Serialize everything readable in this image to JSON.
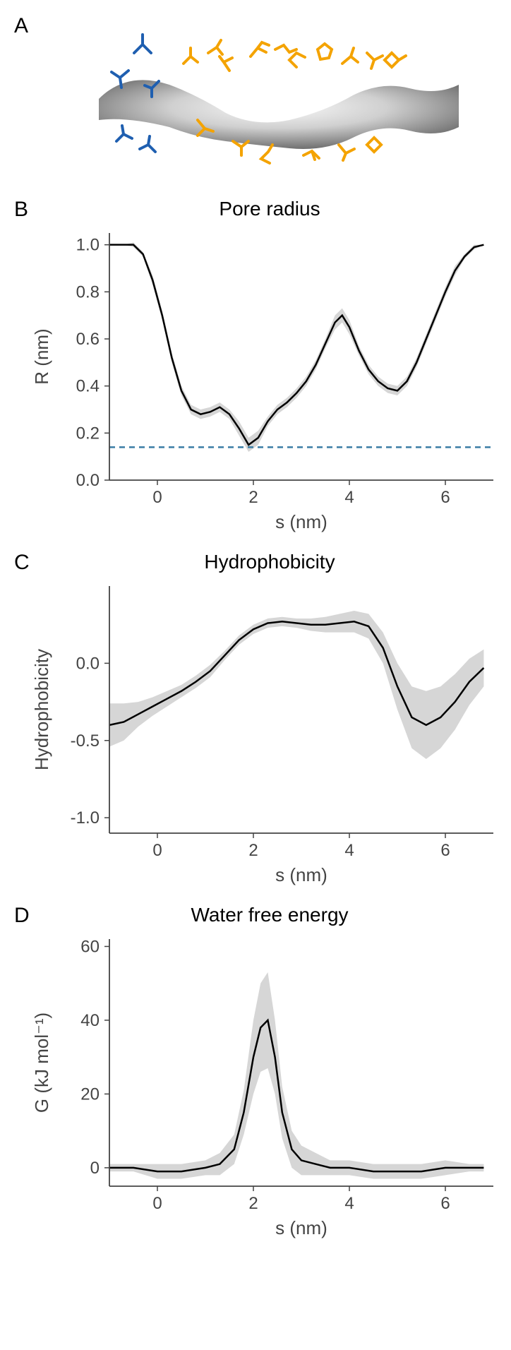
{
  "panelA": {
    "label": "A",
    "tunnel_color": "#d0d0d0",
    "tunnel_highlight": "#f0f0f0",
    "tunnel_shadow": "#808080",
    "blue_residue_color": "#1f5fb0",
    "orange_residue_color": "#f4a300"
  },
  "panelB": {
    "label": "B",
    "title": "Pore radius",
    "xlabel": "s (nm)",
    "ylabel": "R (nm)",
    "xlim": [
      -1,
      7
    ],
    "ylim": [
      0,
      1.05
    ],
    "xticks": [
      0,
      2,
      4,
      6
    ],
    "yticks": [
      0.0,
      0.2,
      0.4,
      0.6,
      0.8,
      1.0
    ],
    "line_color": "#000000",
    "shade_color": "#cccccc",
    "dash_color": "#3a7ca5",
    "dash_value": 0.14,
    "axis_color": "#444444",
    "text_color": "#444444",
    "label_fontsize": 26,
    "tick_fontsize": 24,
    "line_width": 2.5,
    "data": {
      "s": [
        -1.0,
        -0.7,
        -0.5,
        -0.3,
        -0.1,
        0.1,
        0.3,
        0.5,
        0.7,
        0.9,
        1.1,
        1.3,
        1.5,
        1.7,
        1.9,
        2.1,
        2.3,
        2.5,
        2.7,
        2.9,
        3.1,
        3.3,
        3.5,
        3.7,
        3.85,
        4.0,
        4.2,
        4.4,
        4.6,
        4.8,
        5.0,
        5.2,
        5.4,
        5.6,
        5.8,
        6.0,
        6.2,
        6.4,
        6.6,
        6.8
      ],
      "r": [
        1.0,
        1.0,
        1.0,
        0.96,
        0.85,
        0.7,
        0.52,
        0.38,
        0.3,
        0.28,
        0.29,
        0.31,
        0.28,
        0.22,
        0.15,
        0.18,
        0.25,
        0.3,
        0.33,
        0.37,
        0.42,
        0.49,
        0.58,
        0.67,
        0.7,
        0.65,
        0.55,
        0.47,
        0.42,
        0.39,
        0.38,
        0.42,
        0.5,
        0.6,
        0.7,
        0.8,
        0.89,
        0.95,
        0.99,
        1.0
      ],
      "err": [
        0.0,
        0.0,
        0.01,
        0.01,
        0.02,
        0.02,
        0.02,
        0.02,
        0.02,
        0.02,
        0.02,
        0.02,
        0.02,
        0.03,
        0.03,
        0.03,
        0.02,
        0.02,
        0.02,
        0.02,
        0.02,
        0.02,
        0.02,
        0.03,
        0.03,
        0.03,
        0.02,
        0.02,
        0.02,
        0.02,
        0.02,
        0.02,
        0.02,
        0.02,
        0.02,
        0.02,
        0.02,
        0.01,
        0.01,
        0.0
      ]
    }
  },
  "panelC": {
    "label": "C",
    "title": "Hydrophobicity",
    "xlabel": "s (nm)",
    "ylabel": "Hydrophobicity",
    "xlim": [
      -1,
      7
    ],
    "ylim": [
      -1.1,
      0.5
    ],
    "xticks": [
      0,
      2,
      4,
      6
    ],
    "yticks": [
      -1.0,
      -0.5,
      0.0
    ],
    "line_color": "#000000",
    "shade_color": "#cccccc",
    "axis_color": "#444444",
    "text_color": "#444444",
    "label_fontsize": 26,
    "tick_fontsize": 24,
    "line_width": 2.5,
    "data": {
      "s": [
        -1.0,
        -0.7,
        -0.4,
        -0.1,
        0.2,
        0.5,
        0.8,
        1.1,
        1.4,
        1.7,
        2.0,
        2.3,
        2.6,
        2.9,
        3.2,
        3.5,
        3.8,
        4.1,
        4.4,
        4.7,
        5.0,
        5.3,
        5.6,
        5.9,
        6.2,
        6.5,
        6.8
      ],
      "h": [
        -0.4,
        -0.38,
        -0.33,
        -0.28,
        -0.23,
        -0.18,
        -0.12,
        -0.05,
        0.05,
        0.15,
        0.22,
        0.26,
        0.27,
        0.26,
        0.25,
        0.25,
        0.26,
        0.27,
        0.24,
        0.1,
        -0.15,
        -0.35,
        -0.4,
        -0.35,
        -0.25,
        -0.12,
        -0.03
      ],
      "err": [
        0.14,
        0.12,
        0.08,
        0.06,
        0.05,
        0.04,
        0.04,
        0.04,
        0.03,
        0.03,
        0.03,
        0.03,
        0.03,
        0.03,
        0.04,
        0.05,
        0.06,
        0.07,
        0.08,
        0.1,
        0.15,
        0.2,
        0.22,
        0.2,
        0.18,
        0.15,
        0.12
      ]
    }
  },
  "panelD": {
    "label": "D",
    "title": "Water free energy",
    "xlabel": "s (nm)",
    "ylabel": "G (kJ mol⁻¹)",
    "xlim": [
      -1,
      7
    ],
    "ylim": [
      -5,
      62
    ],
    "xticks": [
      0,
      2,
      4,
      6
    ],
    "yticks": [
      0,
      20,
      40,
      60
    ],
    "line_color": "#000000",
    "shade_color": "#cccccc",
    "axis_color": "#444444",
    "text_color": "#444444",
    "label_fontsize": 26,
    "tick_fontsize": 24,
    "line_width": 2.5,
    "data": {
      "s": [
        -1.0,
        -0.5,
        0.0,
        0.5,
        1.0,
        1.3,
        1.6,
        1.8,
        2.0,
        2.15,
        2.3,
        2.45,
        2.6,
        2.8,
        3.0,
        3.3,
        3.6,
        4.0,
        4.5,
        5.0,
        5.5,
        6.0,
        6.5,
        6.8
      ],
      "g": [
        0,
        0,
        -1,
        -1,
        0,
        1,
        5,
        15,
        30,
        38,
        40,
        30,
        15,
        5,
        2,
        1,
        0,
        0,
        -1,
        -1,
        -1,
        0,
        0,
        0
      ],
      "err": [
        1,
        1,
        2,
        2,
        2,
        3,
        4,
        6,
        10,
        12,
        13,
        10,
        7,
        5,
        4,
        3,
        2,
        2,
        2,
        2,
        2,
        2,
        1,
        1
      ]
    }
  }
}
